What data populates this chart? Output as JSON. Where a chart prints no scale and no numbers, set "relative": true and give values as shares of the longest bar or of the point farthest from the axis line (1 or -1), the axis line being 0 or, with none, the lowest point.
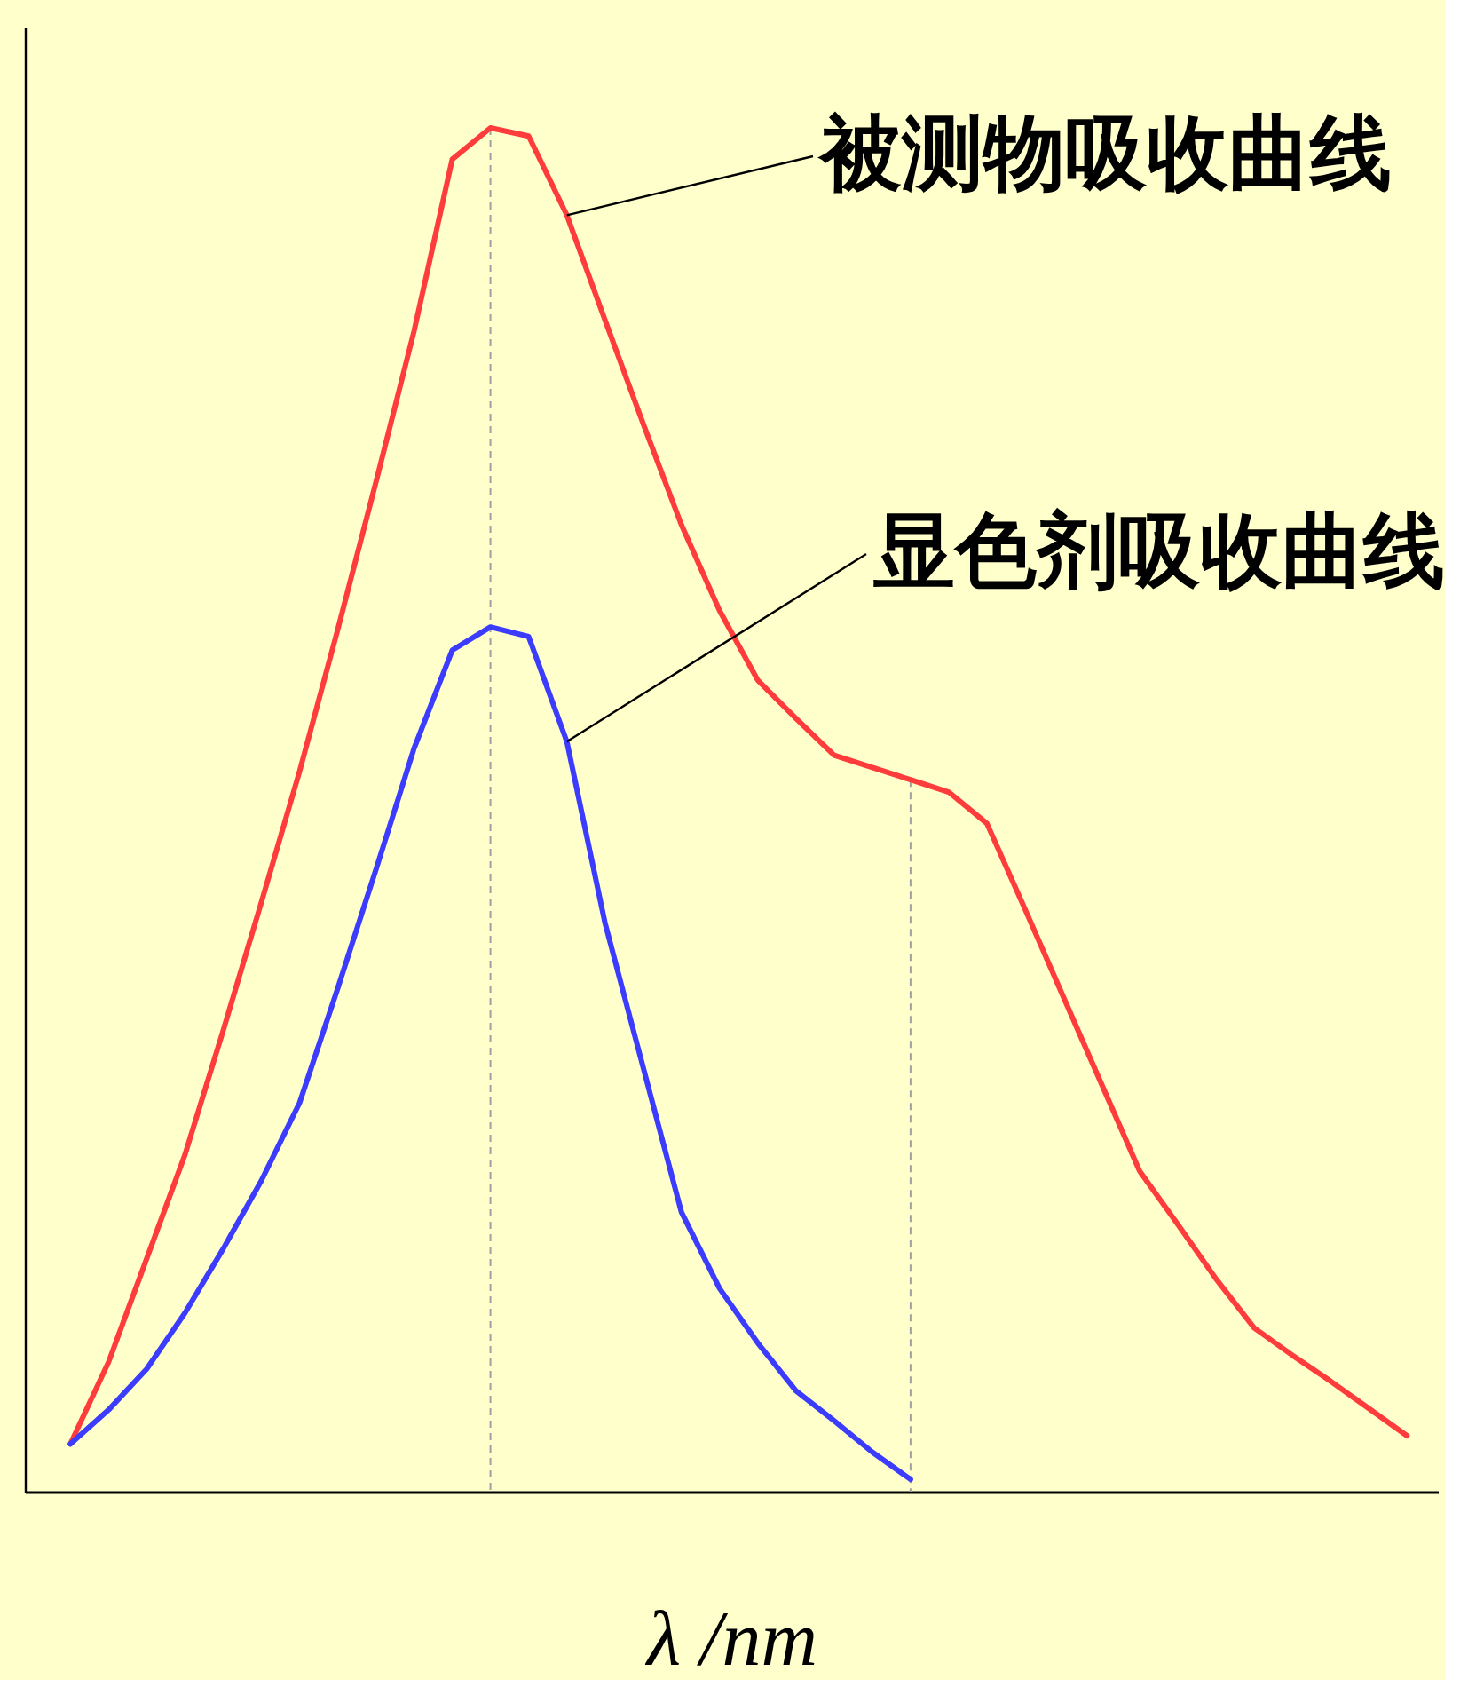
{
  "chart_data": {
    "type": "line",
    "xlabel": "λ /nm",
    "relative": true,
    "tick_labels": false,
    "legend": false,
    "grid": false,
    "marker": "none",
    "line_style": "solid",
    "categories": [
      null,
      null,
      null,
      null,
      null,
      null,
      null,
      null,
      null,
      null,
      null,
      null,
      null,
      null,
      null,
      null,
      null,
      null,
      null,
      null,
      null,
      null,
      null,
      null,
      null,
      null,
      null,
      null,
      null,
      null,
      null,
      null,
      null,
      null,
      null,
      null
    ],
    "series": [
      {
        "name": "被测物吸收曲线",
        "color": "#ff3c3c",
        "values": [
          0.035,
          0.095,
          0.171,
          0.247,
          0.338,
          0.432,
          0.528,
          0.632,
          0.74,
          0.851,
          0.977,
          1.0,
          0.994,
          0.936,
          0.859,
          0.783,
          0.709,
          0.646,
          0.595,
          0.567,
          0.54,
          0.531,
          0.522,
          0.513,
          0.49,
          0.427,
          0.363,
          0.299,
          0.235,
          0.196,
          0.156,
          0.12,
          0.1,
          0.081,
          0.061,
          0.041
        ]
      },
      {
        "name": "显色剂吸收曲线",
        "color": "#3c3cff",
        "values": [
          0.035,
          0.06,
          0.09,
          0.131,
          0.178,
          0.228,
          0.285,
          0.369,
          0.456,
          0.545,
          0.617,
          0.634,
          0.627,
          0.55,
          0.417,
          0.311,
          0.205,
          0.149,
          0.109,
          0.074,
          0.052,
          0.029,
          0.009,
          null,
          null,
          null,
          null,
          null,
          null,
          null,
          null,
          null,
          null,
          null,
          null,
          null
        ]
      }
    ]
  }
}
